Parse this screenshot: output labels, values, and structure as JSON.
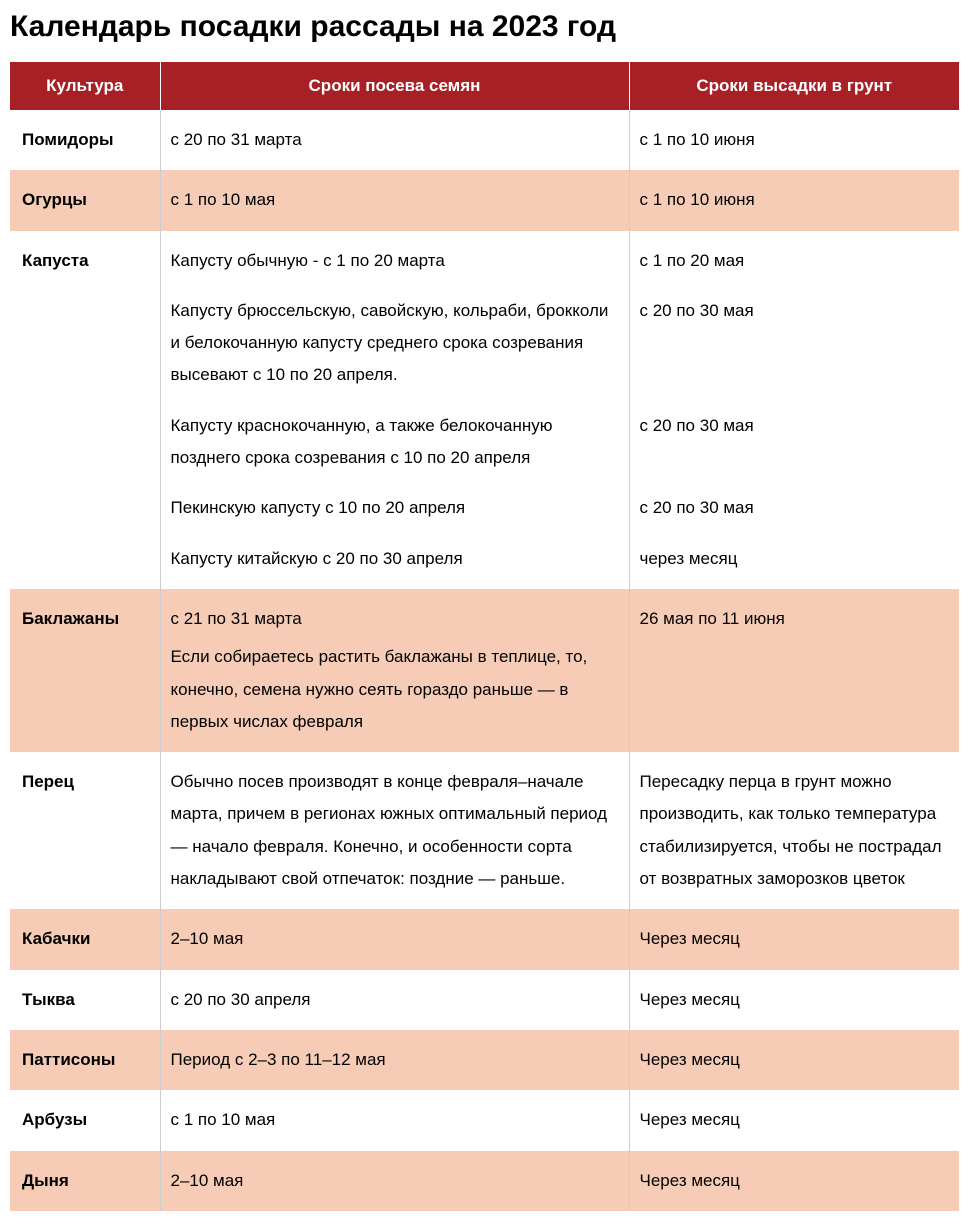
{
  "title": "Календарь посадки рассады на 2023 год",
  "colors": {
    "header_bg": "#a62025",
    "row_alt_bg": "#f6ccb7",
    "row_bg": "#ffffff",
    "text": "#000000",
    "header_text": "#ffffff"
  },
  "table": {
    "columns": [
      "Культура",
      "Сроки посева семян",
      "Сроки высадки в грунт"
    ],
    "rows": [
      {
        "alt": false,
        "culture": "Помидоры",
        "sow": [
          {
            "text": "с 20 по 31 марта"
          }
        ],
        "plant": [
          {
            "text": "с 1 по 10 июня"
          }
        ]
      },
      {
        "alt": true,
        "culture": "Огурцы",
        "sow": [
          {
            "text": "с 1 по 10 мая"
          }
        ],
        "plant": [
          {
            "text": "с 1 по 10 июня"
          }
        ]
      },
      {
        "alt": false,
        "culture": "Капуста",
        "sow": [
          {
            "text": "Капусту обычную - с 1 по 20 марта"
          },
          {
            "text": "Капусту брюссельскую, савойскую, кольраби, брокколи и  белокочанную капусту   среднего срока созревания высевают с 10 по 20 апреля."
          },
          {
            "text": "Капусту краснокочанную, а также белокочанную позднего срока созревания с 10 по 20 апреля"
          },
          {
            "text": "Пекинскую капусту с 10 по 20 апреля"
          },
          {
            "text": "Капусту китайскую с 20 по 30 апреля"
          }
        ],
        "plant": [
          {
            "text": "с 1 по 20 мая"
          },
          {
            "text": "с 20 по 30 мая"
          },
          {
            "text": "с 20 по 30 мая"
          },
          {
            "text": "с 20 по 30 мая"
          },
          {
            "text": "через месяц"
          }
        ]
      },
      {
        "alt": true,
        "culture": "Баклажаны",
        "sow": [
          {
            "text": "с 21 по 31 марта",
            "note": "Если собираетесь   растить баклажаны  в теплице, то, конечно, семена нужно сеять гораздо раньше — в первых числах февраля"
          }
        ],
        "plant": [
          {
            "text": "26 мая по 11 июня"
          }
        ]
      },
      {
        "alt": false,
        "culture": "Перец",
        "sow": [
          {
            "text": "Обычно посев производят в конце февраля–начале марта, причем в регионах южных оптимальный период — начало февраля. Конечно, и особенности сорта накладывают свой отпечаток: поздние — раньше."
          }
        ],
        "plant": [
          {
            "text": "Пересадку перца в грунт можно производить, как только температура стабилизируется, чтобы не пострадал от возвратных заморозков цветок"
          }
        ]
      },
      {
        "alt": true,
        "culture": "Кабачки",
        "sow": [
          {
            "text": "2–10 мая"
          }
        ],
        "plant": [
          {
            "text": "Через месяц"
          }
        ]
      },
      {
        "alt": false,
        "culture": "Тыква",
        "sow": [
          {
            "text": "с 20 по 30 апреля"
          }
        ],
        "plant": [
          {
            "text": "Через месяц"
          }
        ]
      },
      {
        "alt": true,
        "culture": "Паттисоны",
        "sow": [
          {
            "text": "Период с 2–3 по 11–12 мая"
          }
        ],
        "plant": [
          {
            "text": "Через месяц"
          }
        ]
      },
      {
        "alt": false,
        "culture": "Арбузы",
        "sow": [
          {
            "text": "с 1 по 10 мая"
          }
        ],
        "plant": [
          {
            "text": "Через месяц"
          }
        ]
      },
      {
        "alt": true,
        "culture": "Дыня",
        "sow": [
          {
            "text": "2–10 мая"
          }
        ],
        "plant": [
          {
            "text": "Через месяц"
          }
        ]
      }
    ]
  }
}
